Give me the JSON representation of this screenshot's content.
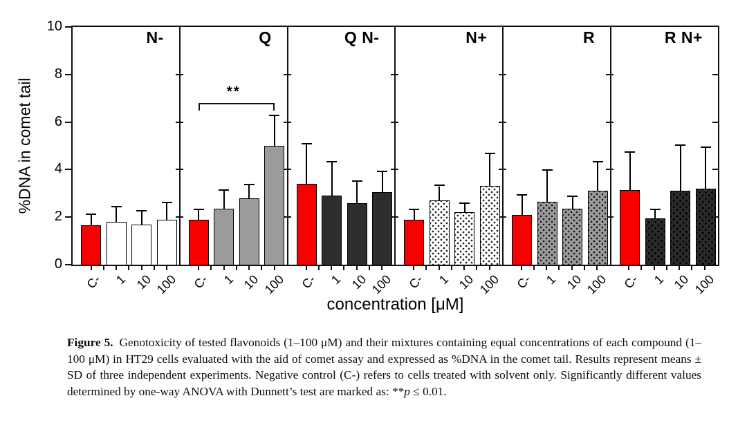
{
  "figure": {
    "caption_label": "Figure 5.",
    "caption_text": "Genotoxicity of tested flavonoids (1–100 μM) and their mixtures containing equal concentrations of each compound (1–100 μM) in HT29 cells evaluated with the aid of comet assay and expressed as %DNA in the comet tail. Results represent means ± SD of three independent experiments. Negative control (C-) refers to cells treated with solvent only. Significantly different values determined by one-way ANOVA with Dunnett’s test are marked as: **",
    "caption_p": "p",
    "caption_after_p": " ≤ 0.01."
  },
  "chart_data": {
    "type": "bar",
    "title": "",
    "ylabel": "%DNA in comet tail",
    "xlabel": "concentration [μM]",
    "ylim": [
      0,
      10
    ],
    "yticks": [
      0,
      2,
      4,
      6,
      8,
      10
    ],
    "categories": [
      "C-",
      "1",
      "10",
      "100"
    ],
    "control_category": "C-",
    "control_color": "#f60000",
    "grid": false,
    "legend": false,
    "panels": [
      {
        "label": "N-",
        "fill": "#ffffff",
        "pattern": "none",
        "means": [
          1.65,
          1.8,
          1.7,
          1.9
        ],
        "sds": [
          0.45,
          0.6,
          0.55,
          0.7
        ]
      },
      {
        "label": "Q",
        "fill": "#9b9b9b",
        "pattern": "none",
        "means": [
          1.9,
          2.35,
          2.8,
          5.0
        ],
        "sds": [
          0.4,
          0.75,
          0.55,
          1.25
        ]
      },
      {
        "label": "Q N-",
        "fill": "#2d2d2d",
        "pattern": "none",
        "means": [
          3.4,
          2.9,
          2.6,
          3.05
        ],
        "sds": [
          1.65,
          1.4,
          0.9,
          0.85
        ]
      },
      {
        "label": "N+",
        "fill": "#ffffff",
        "pattern": "dots",
        "means": [
          1.9,
          2.7,
          2.2,
          3.3
        ],
        "sds": [
          0.4,
          0.6,
          0.35,
          1.35
        ]
      },
      {
        "label": "R",
        "fill": "#9b9b9b",
        "pattern": "dots",
        "means": [
          2.1,
          2.65,
          2.35,
          3.1
        ],
        "sds": [
          0.8,
          1.3,
          0.5,
          1.2
        ]
      },
      {
        "label": "R N+",
        "fill": "#262626",
        "pattern": "dots",
        "means": [
          3.15,
          1.95,
          3.1,
          3.2
        ],
        "sds": [
          1.55,
          0.35,
          1.9,
          1.7
        ]
      }
    ],
    "significance": [
      {
        "panel": "Q",
        "from": "C-",
        "to": "100",
        "label": "**",
        "bracket_y": 6.8
      }
    ]
  }
}
